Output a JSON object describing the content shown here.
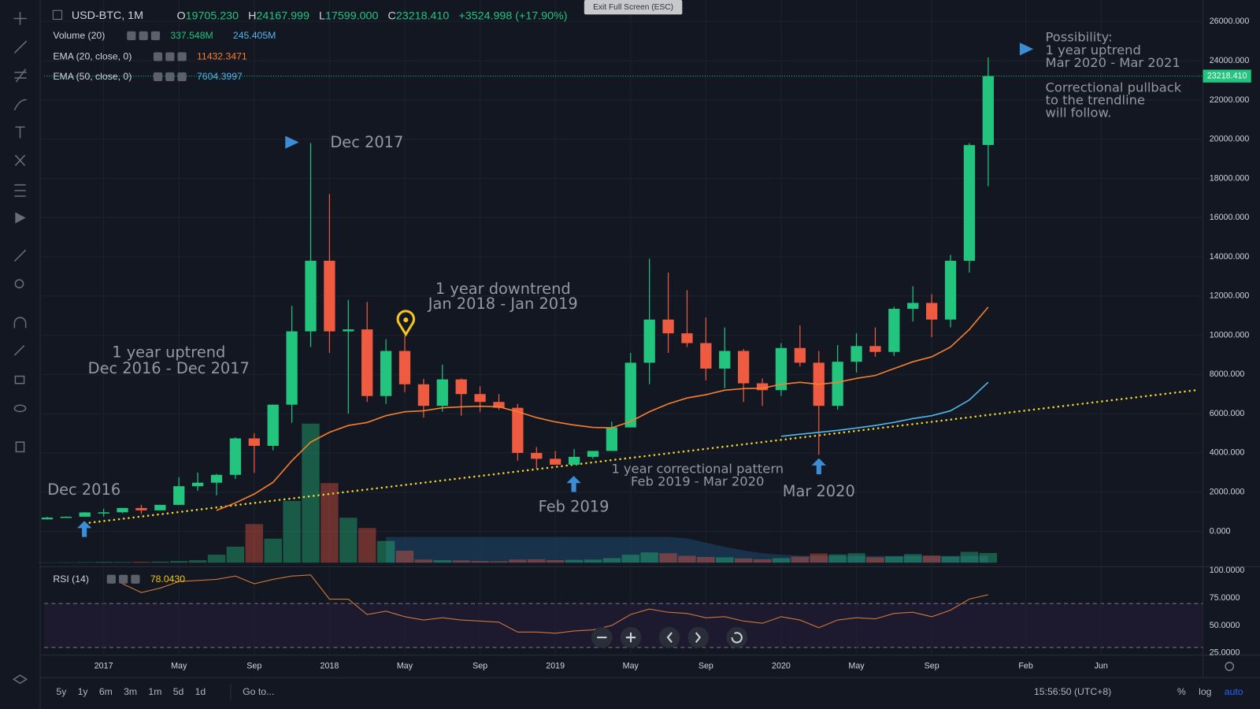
{
  "chart_data": {
    "type": "candlestick",
    "symbol": "USD-BTC, 1M",
    "ohlc_legend": [
      {
        "label": "O",
        "value": "19705.230"
      },
      {
        "label": "H",
        "value": "24167.999"
      },
      {
        "label": "L",
        "value": "17599.000"
      },
      {
        "label": "C",
        "value": "23218.410"
      }
    ],
    "change": "+3524.998 (+17.90%)",
    "indicators": [
      {
        "name": "Volume (20)",
        "values": [
          "337.548M",
          "245.405M"
        ]
      },
      {
        "name": "EMA (20, close, 0)",
        "values": [
          "11432.3471"
        ]
      },
      {
        "name": "EMA (50, close, 0)",
        "values": [
          "7604.3997"
        ]
      }
    ],
    "price_label": "23218.410",
    "up_color": "#22c47e",
    "down_color": "#ef5b40",
    "categories": [
      null,
      null,
      null,
      "2017",
      null,
      null,
      null,
      "May",
      null,
      null,
      null,
      "Sep",
      null,
      null,
      null,
      "2018",
      null,
      null,
      null,
      "May",
      null,
      null,
      null,
      "Sep",
      null,
      null,
      null,
      "2019",
      null,
      null,
      null,
      "May",
      null,
      null,
      null,
      "Sep",
      null,
      null,
      null,
      "2020",
      null,
      null,
      null,
      "May",
      null,
      null,
      null,
      "Sep",
      null,
      null,
      null,
      null,
      "Feb",
      null,
      null,
      null,
      "Jun",
      null,
      null,
      null,
      null,
      null
    ],
    "open": [
      609,
      700,
      745,
      965,
      970,
      1190,
      1070,
      1350,
      2300,
      2480,
      2880,
      4740,
      4360,
      6460,
      10200,
      13800,
      10200,
      10300,
      6900,
      9200,
      7500,
      6400,
      7750,
      7000,
      6600,
      6300,
      4000,
      3700,
      3400,
      3800,
      4100,
      5300,
      8600,
      10800,
      10100,
      9600,
      8300,
      9200,
      7550,
      7200,
      9350,
      8600,
      6400,
      8650,
      9450,
      9150,
      11350,
      11650,
      10800,
      13800,
      19705.23,
      null,
      null,
      null,
      null,
      null,
      null,
      null,
      null,
      null,
      null,
      null
    ],
    "high": [
      740,
      760,
      980,
      1150,
      1200,
      1350,
      1350,
      2760,
      3000,
      2930,
      4800,
      5000,
      6470,
      11500,
      19800,
      17200,
      11800,
      11700,
      9800,
      9990,
      7780,
      8500,
      7800,
      7400,
      7000,
      6500,
      4300,
      4100,
      4200,
      4100,
      5600,
      9100,
      13900,
      13200,
      12300,
      10900,
      10400,
      9300,
      7800,
      9600,
      10500,
      9200,
      9500,
      10100,
      10400,
      11450,
      12500,
      12100,
      14100,
      19800,
      24167.999,
      null,
      null,
      null,
      null,
      null,
      null,
      null,
      null,
      null,
      null,
      null
    ],
    "low": [
      608,
      690,
      740,
      750,
      920,
      890,
      1060,
      1350,
      2070,
      1840,
      2670,
      2980,
      4130,
      5540,
      9400,
      9100,
      6000,
      6600,
      6500,
      7100,
      5800,
      6100,
      5900,
      6100,
      6200,
      3600,
      3200,
      3400,
      3400,
      3700,
      4100,
      5300,
      7500,
      9100,
      9400,
      7700,
      7300,
      6600,
      6400,
      6900,
      8400,
      3900,
      6200,
      8100,
      8900,
      8950,
      10700,
      9900,
      10400,
      13200,
      17599,
      null,
      null,
      null,
      null,
      null,
      null,
      null,
      null,
      null,
      null,
      null
    ],
    "close": [
      700,
      745,
      965,
      970,
      1190,
      1070,
      1350,
      2300,
      2480,
      2880,
      4740,
      4360,
      6460,
      10200,
      13800,
      10200,
      10300,
      6900,
      9200,
      7500,
      6400,
      7750,
      7000,
      6600,
      6300,
      4000,
      3700,
      3400,
      3800,
      4100,
      5300,
      8600,
      10800,
      10100,
      9600,
      8300,
      9200,
      7550,
      7200,
      9350,
      8600,
      6400,
      8650,
      9450,
      9150,
      11350,
      11650,
      10800,
      13800,
      19700,
      23218.41,
      null,
      null,
      null,
      null,
      null,
      null,
      null,
      null,
      null,
      null,
      null
    ],
    "volume": [
      10,
      15,
      20,
      30,
      25,
      35,
      40,
      60,
      85,
      280,
      560,
      1350,
      840,
      2160,
      4860,
      2780,
      1570,
      1210,
      760,
      420,
      110,
      90,
      80,
      60,
      50,
      110,
      120,
      90,
      100,
      110,
      160,
      280,
      360,
      330,
      240,
      200,
      190,
      150,
      120,
      160,
      210,
      320,
      290,
      330,
      190,
      220,
      300,
      250,
      220,
      380,
      337.548,
      null,
      null,
      null,
      null,
      null,
      null,
      null,
      null,
      null,
      null,
      null
    ],
    "volume_ma": {
      "color": "#1c3c5a",
      "values": [
        null,
        null,
        null,
        null,
        null,
        null,
        null,
        null,
        null,
        null,
        null,
        null,
        null,
        null,
        null,
        null,
        null,
        null,
        900,
        900,
        900,
        900,
        900,
        900,
        900,
        900,
        900,
        900,
        900,
        900,
        900,
        900,
        900,
        900,
        850,
        700,
        550,
        430,
        330,
        280,
        250,
        240,
        240,
        240,
        240,
        240,
        240,
        240,
        240,
        240,
        245.405,
        null,
        null,
        null,
        null,
        null,
        null,
        null,
        null,
        null,
        null,
        null
      ]
    },
    "ema20": {
      "color": "#f57f2e",
      "values": [
        null,
        null,
        null,
        null,
        null,
        null,
        null,
        null,
        null,
        1070,
        1450,
        1900,
        2500,
        3600,
        4550,
        5050,
        5400,
        5550,
        5900,
        6100,
        6150,
        6300,
        6350,
        6380,
        6350,
        6100,
        5800,
        5580,
        5420,
        5300,
        5280,
        5600,
        6100,
        6500,
        6800,
        6970,
        7200,
        7280,
        7300,
        7500,
        7600,
        7500,
        7600,
        7800,
        7950,
        8300,
        8650,
        8900,
        9400,
        10300,
        11432.3471,
        null,
        null,
        null,
        null,
        null,
        null,
        null,
        null,
        null,
        null,
        null
      ]
    },
    "ema50": {
      "color": "#4fb6ea",
      "values": [
        null,
        null,
        null,
        null,
        null,
        null,
        null,
        null,
        null,
        null,
        null,
        null,
        null,
        null,
        null,
        null,
        null,
        null,
        null,
        null,
        null,
        null,
        null,
        null,
        null,
        null,
        null,
        null,
        null,
        null,
        null,
        null,
        null,
        null,
        null,
        null,
        null,
        null,
        null,
        4850,
        4950,
        5050,
        5150,
        5270,
        5400,
        5560,
        5750,
        5900,
        6150,
        6700,
        7604.3997,
        null,
        null,
        null,
        null,
        null,
        null,
        null,
        null,
        null,
        null,
        null
      ]
    },
    "trendline": {
      "color": "#f0d531",
      "values": [
        null,
        null,
        410,
        525,
        640,
        755,
        870,
        985,
        1100,
        1215,
        1330,
        1445,
        1560,
        1675,
        1790,
        1905,
        2020,
        2135,
        2250,
        2365,
        2480,
        2595,
        2710,
        2825,
        2940,
        3055,
        3170,
        3285,
        3400,
        3515,
        3630,
        3745,
        3860,
        3975,
        4090,
        4205,
        4320,
        4435,
        4550,
        4665,
        4780,
        4895,
        5010,
        5125,
        5240,
        5355,
        5470,
        5585,
        5700,
        5815,
        5930,
        6045,
        6160,
        6275,
        6390,
        6505,
        6620,
        6735,
        6850,
        6965,
        7080,
        7195
      ]
    },
    "ylim": [
      -1600,
      27100
    ],
    "yticks": [
      {
        "value": 0,
        "label": "0.000"
      },
      {
        "value": 2000,
        "label": "2000.000"
      },
      {
        "value": 4000,
        "label": "4000.000"
      },
      {
        "value": 6000,
        "label": "6000.000"
      },
      {
        "value": 8000,
        "label": "8000.000"
      },
      {
        "value": 10000,
        "label": "10000.000"
      },
      {
        "value": 12000,
        "label": "12000.000"
      },
      {
        "value": 14000,
        "label": "14000.000"
      },
      {
        "value": 16000,
        "label": "16000.000"
      },
      {
        "value": 18000,
        "label": "18000.000"
      },
      {
        "value": 20000,
        "label": "20000.000"
      },
      {
        "value": 22000,
        "label": "22000.000"
      },
      {
        "value": 24000,
        "label": "24000.000"
      },
      {
        "value": 26000,
        "label": "26000.000"
      }
    ],
    "grid": true,
    "rsi": {
      "name": "RSI (14)",
      "value_label": "78.0430",
      "color": "#c9773a",
      "values": [
        null,
        null,
        null,
        null,
        88,
        80,
        84,
        90,
        91,
        92,
        95,
        88,
        92,
        95,
        96,
        74,
        74,
        60,
        63,
        58,
        55,
        57,
        55,
        54,
        53,
        44,
        44,
        43,
        45,
        46,
        50,
        60,
        65,
        62,
        61,
        57,
        58,
        54,
        52,
        58,
        55,
        48,
        55,
        57,
        56,
        61,
        62,
        58,
        64,
        74,
        78.043,
        null,
        null,
        null,
        null,
        null,
        null,
        null,
        null,
        null,
        null,
        null
      ],
      "ylim": [
        23,
        103.5
      ],
      "yticks": [
        {
          "value": 100,
          "label": "100.0000"
        },
        {
          "value": 75,
          "label": "75.0000"
        },
        {
          "value": 50,
          "label": "50.0000"
        },
        {
          "value": 25,
          "label": "25.0000"
        }
      ],
      "bands": [
        30,
        70
      ]
    },
    "annotations": [
      {
        "lines": [
          "Dec 2016"
        ]
      },
      {
        "lines": [
          "Dec 2017"
        ]
      },
      {
        "lines": [
          "1 year uptrend",
          "Dec 2016 - Dec 2017"
        ]
      },
      {
        "lines": [
          "1 year downtrend",
          "Jan 2018 - Jan 2019"
        ]
      },
      {
        "lines": [
          "Feb 2019"
        ]
      },
      {
        "lines": [
          "1 year correctional pattern",
          "Feb 2019 - Mar 2020"
        ]
      },
      {
        "lines": [
          "Mar 2020"
        ]
      },
      {
        "lines": [
          "Possibility:",
          "1 year uptrend",
          "Mar 2020 - Mar 2021"
        ]
      },
      {
        "lines": [
          "Correctional pullback",
          "to the trendline",
          "will follow."
        ]
      }
    ]
  },
  "ui": {
    "tooltip": "Exit Full Screen (ESC)",
    "ranges": [
      "5y",
      "1y",
      "6m",
      "3m",
      "1m",
      "5d",
      "1d"
    ],
    "goto": "Go to...",
    "time": "15:56:50 (UTC+8)",
    "scale_options": [
      "%",
      "log",
      "auto"
    ]
  }
}
